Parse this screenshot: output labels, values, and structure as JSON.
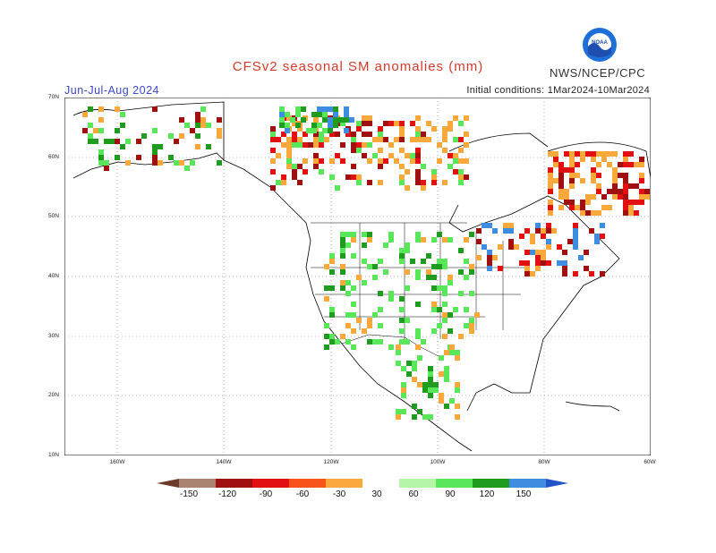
{
  "header": {
    "title": "CFSv2 seasonal SM anomalies (mm)",
    "agency": "NWS/NCEP/CPC",
    "season": "Jun-Jul-Aug 2024",
    "initial_conditions": "Initial conditions: 1Mar2024-10Mar2024",
    "logo_icon": "noaa-logo-icon"
  },
  "map": {
    "region": "North America",
    "lat_labels": [
      "70N",
      "60N",
      "50N",
      "40N",
      "30N",
      "20N",
      "10N"
    ],
    "lon_labels": [
      "160W",
      "140W",
      "120W",
      "100W",
      "80W",
      "60W"
    ]
  },
  "legend": {
    "labels": [
      "-150",
      "-120",
      "-90",
      "-60",
      "-30",
      "30",
      "60",
      "90",
      "120",
      "150"
    ],
    "colors": [
      "#6b3a2a",
      "#a9836e",
      "#a11010",
      "#e21010",
      "#f9531c",
      "#f9a93b",
      "#ffffff",
      "#b4f5a8",
      "#5ae65a",
      "#1f9c1f",
      "#3f8de0",
      "#2255c8"
    ]
  },
  "colors": {
    "dry_strong": "#a11010",
    "dry": "#e21010",
    "dry_mild": "#f9a93b",
    "wet_mild": "#5ae65a",
    "wet": "#1f9c1f",
    "wet_strong": "#3f8de0"
  }
}
